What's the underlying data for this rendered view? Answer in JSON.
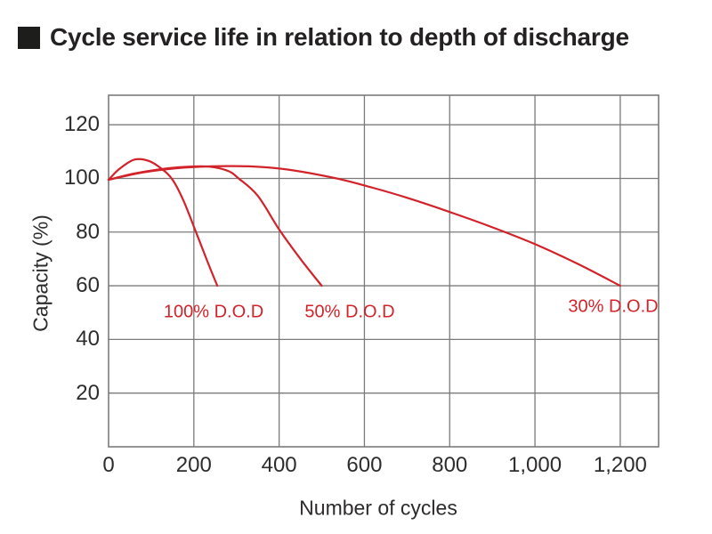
{
  "title": "Cycle service life in relation to depth of discharge",
  "colors": {
    "curve_red": "#d2232a",
    "grid_gray": "#7b7b7b",
    "text_dark": "#2d2b2c",
    "title_black": "#232122",
    "bullet_black": "#1d1d1b"
  },
  "chart_data": {
    "type": "line",
    "title": "Cycle service life in relation to depth of discharge",
    "xlabel": "Number of cycles",
    "ylabel": "Capacity (%)",
    "xlim": [
      0,
      1290
    ],
    "ylim": [
      0,
      131
    ],
    "grid": true,
    "x_ticks": [
      {
        "value": 0,
        "label": "0"
      },
      {
        "value": 200,
        "label": "200"
      },
      {
        "value": 400,
        "label": "400"
      },
      {
        "value": 600,
        "label": "600"
      },
      {
        "value": 800,
        "label": "800"
      },
      {
        "value": 1000,
        "label": "1,000"
      },
      {
        "value": 1200,
        "label": "1,200"
      }
    ],
    "y_ticks": [
      {
        "value": 120,
        "label": "120"
      },
      {
        "value": 100,
        "label": "100"
      },
      {
        "value": 80,
        "label": "80"
      },
      {
        "value": 60,
        "label": "60"
      },
      {
        "value": 40,
        "label": "40"
      },
      {
        "value": 20,
        "label": "20"
      }
    ],
    "series": [
      {
        "name": "100% D.O.D",
        "points": [
          [
            0,
            99.5
          ],
          [
            25,
            103.5
          ],
          [
            60,
            107
          ],
          [
            95,
            106.5
          ],
          [
            125,
            103.5
          ],
          [
            150,
            99.5
          ],
          [
            175,
            92
          ],
          [
            205,
            80
          ],
          [
            232,
            69
          ],
          [
            255,
            60
          ]
        ]
      },
      {
        "name": "50% D.O.D",
        "points": [
          [
            0,
            99.5
          ],
          [
            60,
            101.8
          ],
          [
            120,
            103.4
          ],
          [
            180,
            104.3
          ],
          [
            235,
            104.4
          ],
          [
            280,
            102.8
          ],
          [
            305,
            100
          ],
          [
            350,
            93.5
          ],
          [
            400,
            81
          ],
          [
            450,
            70
          ],
          [
            500,
            60
          ]
        ]
      },
      {
        "name": "30% D.O.D",
        "points": [
          [
            0,
            99.5
          ],
          [
            80,
            102.2
          ],
          [
            160,
            103.8
          ],
          [
            240,
            104.5
          ],
          [
            330,
            104.5
          ],
          [
            420,
            103.3
          ],
          [
            535,
            100
          ],
          [
            620,
            96.5
          ],
          [
            700,
            92.8
          ],
          [
            800,
            87.5
          ],
          [
            900,
            81.8
          ],
          [
            1000,
            75.5
          ],
          [
            1100,
            68.2
          ],
          [
            1200,
            60
          ]
        ]
      }
    ]
  }
}
